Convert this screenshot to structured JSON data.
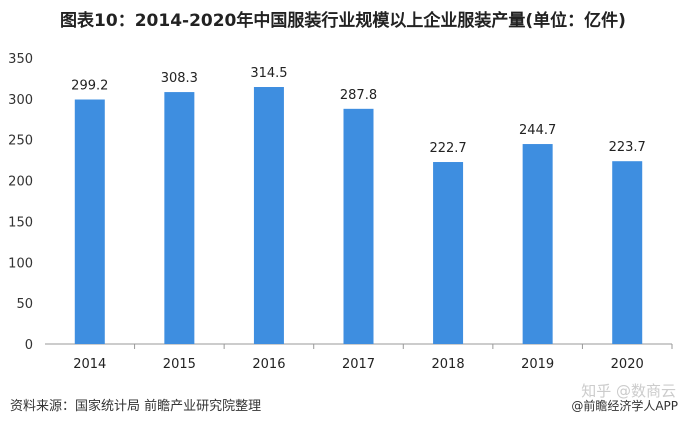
{
  "title": "图表10：2014-2020年中国服装行业规模以上企业服装产量(单位：亿件)",
  "source": "资料来源：国家统计局 前瞻产业研究院整理",
  "watermark_zhihu": "知乎 @数商云",
  "watermark_app": "@前瞻经济学人APP",
  "chart_data": {
    "type": "bar",
    "title": "图表10：2014-2020年中国服装行业规模以上企业服装产量(单位：亿件)",
    "categories": [
      "2014",
      "2015",
      "2016",
      "2017",
      "2018",
      "2019",
      "2020"
    ],
    "values": [
      299.2,
      308.3,
      314.5,
      287.8,
      222.7,
      244.7,
      223.7
    ],
    "ylim": [
      0,
      350
    ],
    "yticks": [
      0,
      50,
      100,
      150,
      200,
      250,
      300,
      350
    ],
    "grid": false,
    "bar_color": "#3e8ee0"
  }
}
